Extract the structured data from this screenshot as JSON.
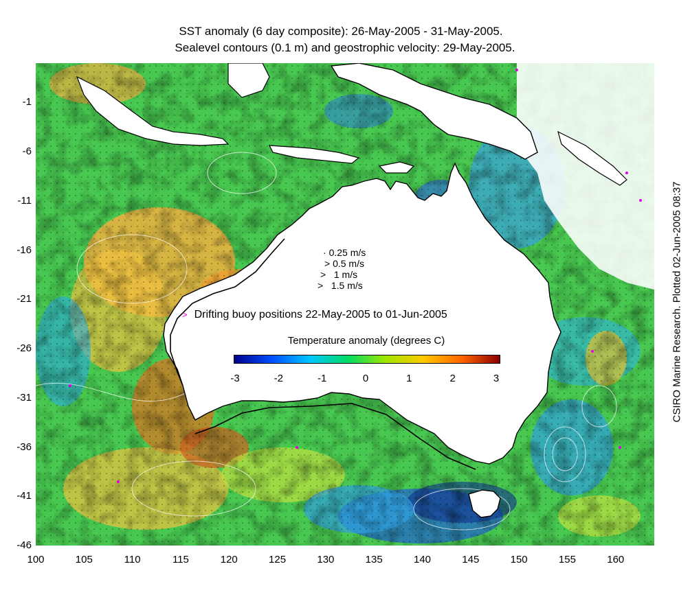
{
  "title_line1": "SST anomaly (6 day composite): 26-May-2005 - 31-May-2005.",
  "title_line2": "Sealevel contours (0.1 m) and geostrophic velocity: 29-May-2005.",
  "credit": "CSIRO Marine Research. Plotted 02-Jun-2005 08:37",
  "y_axis_ticks": [
    "-1",
    "-6",
    "-11",
    "-16",
    "-21",
    "-26",
    "-31",
    "-36",
    "-41",
    "-46"
  ],
  "x_axis_ticks": [
    "100",
    "105",
    "110",
    "115",
    "120",
    "125",
    "130",
    "135",
    "140",
    "145",
    "150",
    "155",
    "160"
  ],
  "velocity_legend": [
    "0.25 m/s",
    "0.5 m/s",
    "1 m/s",
    "1.5 m/s"
  ],
  "buoy_legend": "Drifting buoy positions 22-May-2005 to 01-Jun-2005",
  "colorbar": {
    "title": "Temperature anomaly (degrees C)",
    "ticks": [
      "-3",
      "-2",
      "-1",
      "0",
      "1",
      "2",
      "3"
    ],
    "colors": [
      "#00008b",
      "#0050ff",
      "#00c8ff",
      "#00dc64",
      "#a0e600",
      "#ffc800",
      "#ff6400",
      "#8b0000"
    ]
  },
  "colors": {
    "land": "#ffffff",
    "ocean_warm": "#f0a030",
    "ocean_neutral": "#48c850",
    "ocean_cool": "#2090e0",
    "buoy": "#e000e0"
  },
  "map": {
    "lon_range": [
      100,
      164
    ],
    "lat_range": [
      -46,
      3
    ]
  }
}
